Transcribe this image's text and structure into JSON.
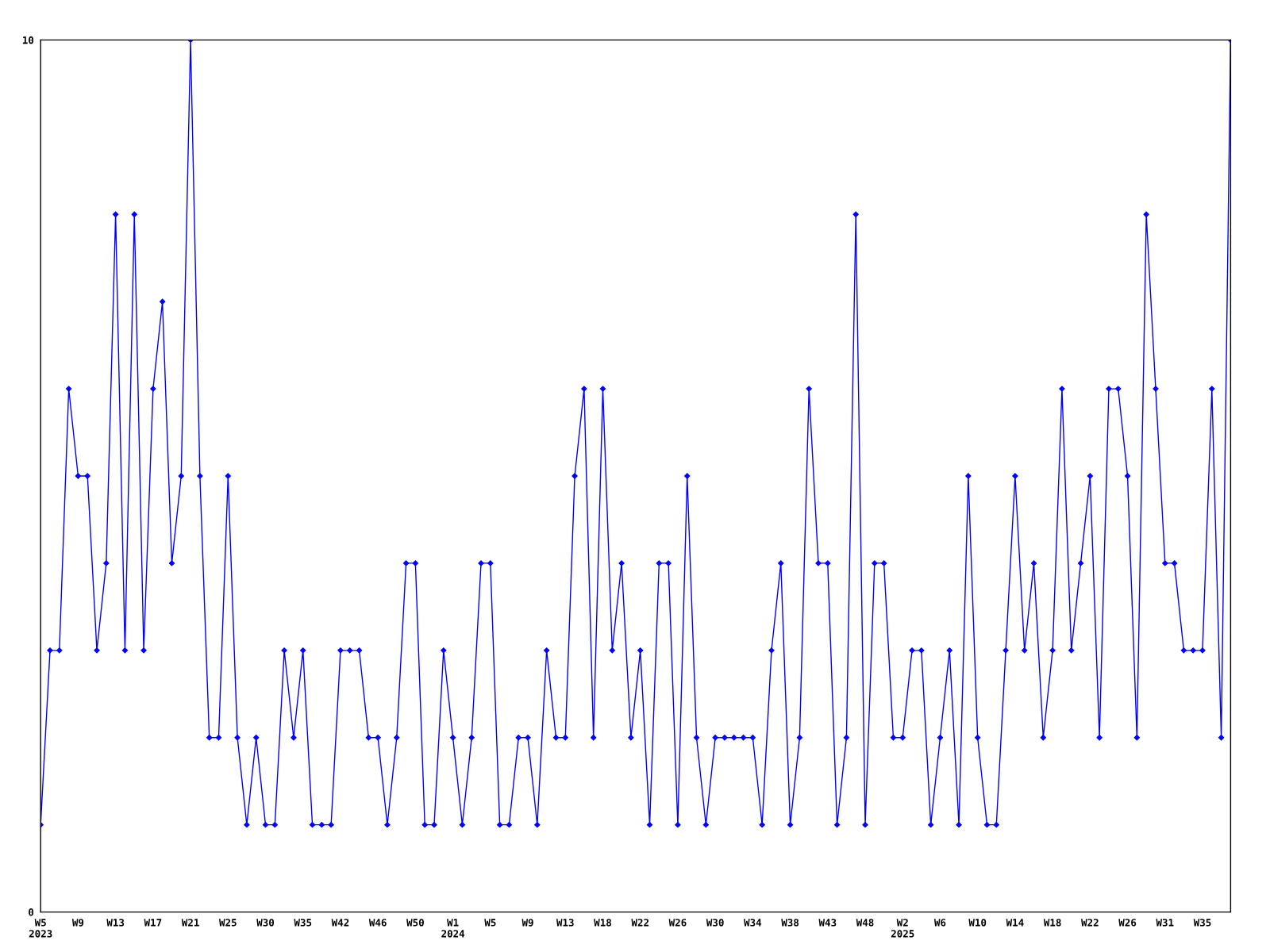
{
  "chart_data": {
    "type": "line",
    "categories": [
      "W5\n2023",
      null,
      null,
      null,
      "W9",
      null,
      null,
      null,
      "W13",
      null,
      null,
      null,
      "W17",
      null,
      null,
      null,
      "W21",
      null,
      null,
      null,
      "W25",
      null,
      null,
      null,
      "W30",
      null,
      null,
      null,
      "W35",
      null,
      null,
      null,
      "W42",
      null,
      null,
      null,
      "W46",
      null,
      null,
      null,
      "W50",
      null,
      null,
      null,
      "W1\n2024",
      null,
      null,
      null,
      "W5",
      null,
      null,
      null,
      "W9",
      null,
      null,
      null,
      "W13",
      null,
      null,
      null,
      "W18",
      null,
      null,
      null,
      "W22",
      null,
      null,
      null,
      "W26",
      null,
      null,
      null,
      "W30",
      null,
      null,
      null,
      "W34",
      null,
      null,
      null,
      "W38",
      null,
      null,
      null,
      "W43",
      null,
      null,
      null,
      "W48",
      null,
      null,
      null,
      "W2\n2025",
      null,
      null,
      null,
      "W6",
      null,
      null,
      null,
      "W10",
      null,
      null,
      null,
      "W14",
      null,
      null,
      null,
      "W18",
      null,
      null,
      null,
      "W22",
      null,
      null,
      null,
      "W26",
      null,
      null,
      null,
      "W31",
      null,
      null,
      null,
      "W35",
      null,
      null,
      null
    ],
    "series": [
      {
        "color": "#0000ff",
        "values": [
          1,
          3,
          3,
          6,
          5,
          5,
          3,
          4,
          8,
          3,
          8,
          3,
          6,
          7,
          4,
          5,
          10,
          5,
          2,
          2,
          5,
          2,
          1,
          2,
          1,
          1,
          3,
          2,
          3,
          1,
          1,
          1,
          3,
          3,
          3,
          2,
          2,
          1,
          2,
          4,
          4,
          1,
          1,
          3,
          2,
          1,
          2,
          4,
          4,
          1,
          1,
          2,
          2,
          1,
          3,
          2,
          2,
          5,
          6,
          2,
          6,
          3,
          4,
          2,
          3,
          1,
          4,
          4,
          1,
          5,
          2,
          1,
          2,
          2,
          2,
          2,
          2,
          1,
          3,
          4,
          1,
          2,
          6,
          4,
          4,
          1,
          2,
          8,
          1,
          4,
          4,
          2,
          2,
          3,
          3,
          1,
          2,
          3,
          1,
          5,
          2,
          1,
          1,
          3,
          5,
          3,
          4,
          2,
          3,
          6,
          3,
          4,
          5,
          2,
          6,
          6,
          5,
          2,
          8,
          6,
          4,
          4,
          3,
          3,
          3,
          6,
          2,
          10
        ]
      }
    ],
    "ylim": [
      0,
      10
    ],
    "yticks": [
      0,
      10
    ],
    "grid": false,
    "marker": "diamond",
    "line_style": "solid"
  }
}
